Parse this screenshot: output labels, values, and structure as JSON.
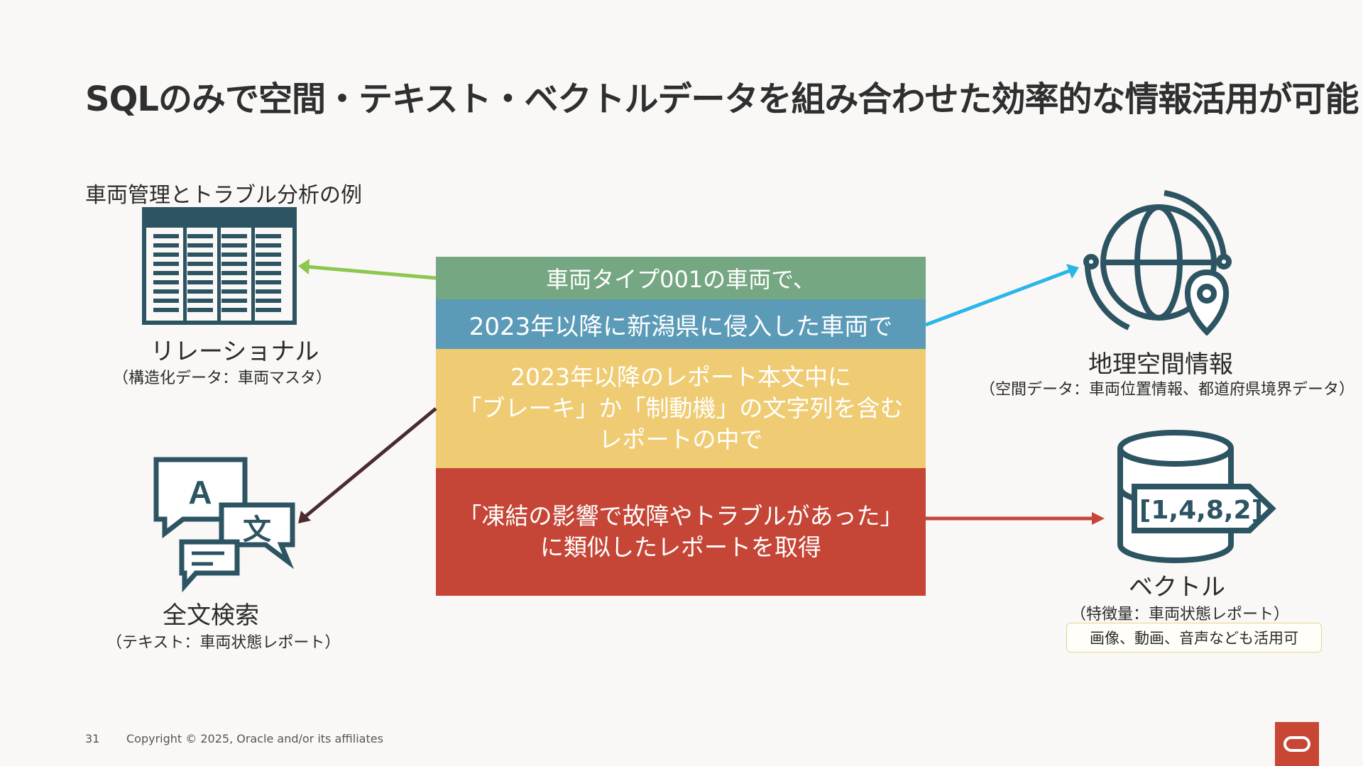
{
  "title": "SQLのみで空間・テキスト・ベクトルデータを組み合わせた効率的な情報活用が可能",
  "subtitle": "車両管理とトラブル分析の例",
  "center": {
    "green": "車両タイプ001の車両で、",
    "blue": "2023年以降に新潟県に侵入した車両で",
    "yellow": [
      "2023年以降のレポート本文中に",
      "「ブレーキ」か「制動機」の文字列を含む",
      "レポートの中で"
    ],
    "red": [
      "「凍結の影響で故障やトラブルがあった」",
      "に類似したレポートを取得"
    ]
  },
  "relational": {
    "label": "リレーショナル",
    "sub": "（構造化データ：車両マスタ）"
  },
  "fulltext": {
    "label": "全文検索",
    "sub": "（テキスト：車両状態レポート）"
  },
  "spatial": {
    "label": "地理空間情報",
    "sub": "（空間データ：車両位置情報、都道府県境界データ）"
  },
  "vector": {
    "label": "ベクトル",
    "sub": "（特徴量：車両状態レポート）",
    "note": "画像、動画、音声なども活用可",
    "icon_text": "[1,4,8,2]"
  },
  "footer": {
    "page": "31",
    "copyright": "Copyright © 2025, Oracle and/or its affiliates"
  },
  "colors": {
    "green": "#76a783",
    "blue": "#5b9bb7",
    "yellow": "#efcc74",
    "red": "#c54636",
    "icon": "#2d5462",
    "arrow_green": "#8dc650",
    "arrow_blue": "#29b6e8",
    "arrow_dark": "#4a2b30",
    "arrow_red": "#c54636"
  }
}
